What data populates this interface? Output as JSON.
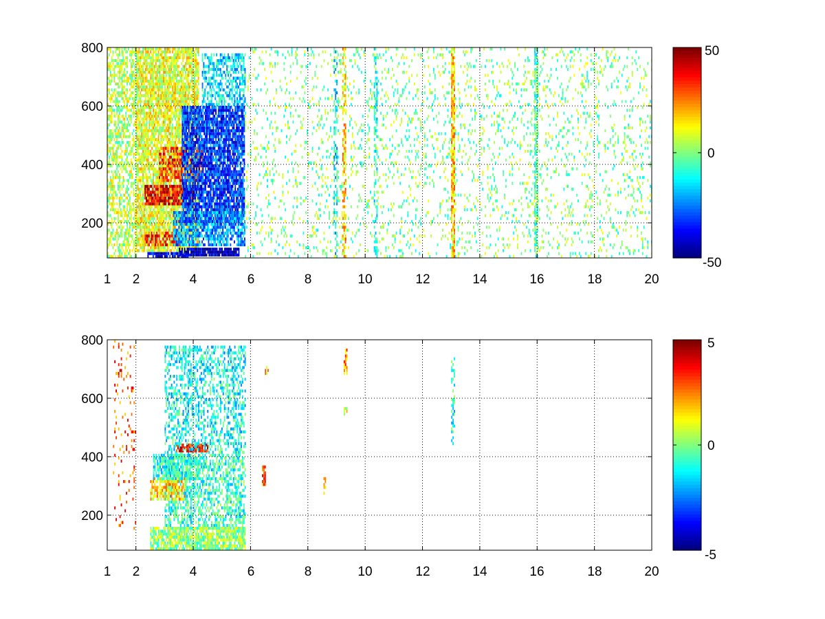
{
  "chart_data": [
    {
      "type": "heatmap",
      "title": "",
      "xlabel": "",
      "ylabel": "",
      "xlim": [
        1,
        20
      ],
      "ylim": [
        80,
        800
      ],
      "x_ticks": [
        1,
        2,
        4,
        6,
        8,
        10,
        12,
        14,
        16,
        18,
        20
      ],
      "x_tick_labels": [
        "1",
        "2",
        "4",
        "6",
        "8",
        "10",
        "12",
        "14",
        "16",
        "18",
        "20"
      ],
      "y_ticks": [
        200,
        400,
        600,
        800
      ],
      "y_tick_labels": [
        "200",
        "400",
        "600",
        "800"
      ],
      "grid": true,
      "colormap": "jet",
      "colorbar": {
        "min": -50,
        "max": 50,
        "ticks": [
          50,
          0,
          -50
        ],
        "tick_labels": [
          "50",
          "0",
          "-50"
        ]
      },
      "features": [
        {
          "x_range": [
            1.0,
            2.0
          ],
          "y_range": [
            80,
            800
          ],
          "value": 5,
          "density": 0.55
        },
        {
          "x_range": [
            2.0,
            4.2
          ],
          "y_range": [
            100,
            800
          ],
          "value": 10,
          "density": 0.8
        },
        {
          "x_range": [
            2.3,
            4.0
          ],
          "y_range": [
            260,
            330
          ],
          "value": 38,
          "density": 0.85
        },
        {
          "x_range": [
            2.8,
            4.3
          ],
          "y_range": [
            340,
            460
          ],
          "value": 32,
          "density": 0.7
        },
        {
          "x_range": [
            2.3,
            3.6
          ],
          "y_range": [
            120,
            170
          ],
          "value": 35,
          "density": 0.6
        },
        {
          "x_range": [
            3.6,
            5.8
          ],
          "y_range": [
            200,
            600
          ],
          "value": -32,
          "density": 0.85
        },
        {
          "x_range": [
            4.3,
            5.8
          ],
          "y_range": [
            600,
            780
          ],
          "value": -15,
          "density": 0.6
        },
        {
          "x_range": [
            3.5,
            5.6
          ],
          "y_range": [
            85,
            115
          ],
          "value": -45,
          "density": 0.9
        },
        {
          "x_range": [
            3.3,
            5.8
          ],
          "y_range": [
            120,
            240
          ],
          "value": -22,
          "density": 0.7
        },
        {
          "x_range": [
            2.4,
            3.8
          ],
          "y_range": [
            80,
            100
          ],
          "value": -40,
          "density": 0.8
        },
        {
          "x_range": [
            5.8,
            20.0
          ],
          "y_range": [
            80,
            800
          ],
          "value": 0,
          "density": 0.12
        },
        {
          "x_range": [
            9.2,
            9.3
          ],
          "y_range": [
            80,
            800
          ],
          "value": 18,
          "density": 0.6
        },
        {
          "x_range": [
            13.0,
            13.1
          ],
          "y_range": [
            80,
            800
          ],
          "value": 18,
          "density": 0.85
        },
        {
          "x_range": [
            15.9,
            16.0
          ],
          "y_range": [
            80,
            800
          ],
          "value": -4,
          "density": 0.8
        },
        {
          "x_range": [
            10.3,
            10.4
          ],
          "y_range": [
            80,
            800
          ],
          "value": -10,
          "density": 0.55
        },
        {
          "x_range": [
            8.9,
            9.0
          ],
          "y_range": [
            80,
            800
          ],
          "value": -14,
          "density": 0.45
        }
      ]
    },
    {
      "type": "heatmap",
      "title": "",
      "xlabel": "",
      "ylabel": "",
      "xlim": [
        1,
        20
      ],
      "ylim": [
        80,
        800
      ],
      "x_ticks": [
        1,
        2,
        4,
        6,
        8,
        10,
        12,
        14,
        16,
        18,
        20
      ],
      "x_tick_labels": [
        "1",
        "2",
        "4",
        "6",
        "8",
        "10",
        "12",
        "14",
        "16",
        "18",
        "20"
      ],
      "y_ticks": [
        200,
        400,
        600,
        800
      ],
      "y_tick_labels": [
        "200",
        "400",
        "600",
        "800"
      ],
      "grid": true,
      "colormap": "jet",
      "colorbar": {
        "min": -5,
        "max": 5,
        "ticks": [
          5,
          0,
          -5
        ],
        "tick_labels": [
          "5",
          "0",
          "-5"
        ]
      },
      "features": [
        {
          "x_range": [
            1.2,
            2.0
          ],
          "y_range": [
            150,
            800
          ],
          "value": 3,
          "density": 0.1
        },
        {
          "x_range": [
            2.5,
            5.8
          ],
          "y_range": [
            80,
            160
          ],
          "value": 0.2,
          "density": 0.85
        },
        {
          "x_range": [
            3.0,
            5.8
          ],
          "y_range": [
            160,
            420
          ],
          "value": -0.8,
          "density": 0.55
        },
        {
          "x_range": [
            2.5,
            3.7
          ],
          "y_range": [
            250,
            330
          ],
          "value": 1.6,
          "density": 0.65
        },
        {
          "x_range": [
            2.6,
            4.2
          ],
          "y_range": [
            320,
            410
          ],
          "value": -1.0,
          "density": 0.7
        },
        {
          "x_range": [
            3.4,
            4.5
          ],
          "y_range": [
            415,
            440
          ],
          "value": 3.8,
          "density": 0.8
        },
        {
          "x_range": [
            3.0,
            5.8
          ],
          "y_range": [
            420,
            780
          ],
          "value": -1.2,
          "density": 0.45
        },
        {
          "x_range": [
            6.5,
            6.6
          ],
          "y_range": [
            680,
            710
          ],
          "value": 2,
          "density": 0.85
        },
        {
          "x_range": [
            6.4,
            6.5
          ],
          "y_range": [
            300,
            370
          ],
          "value": 3,
          "density": 0.7
        },
        {
          "x_range": [
            8.5,
            8.6
          ],
          "y_range": [
            270,
            330
          ],
          "value": 2.5,
          "density": 0.4
        },
        {
          "x_range": [
            9.25,
            9.35
          ],
          "y_range": [
            680,
            770
          ],
          "value": 2.5,
          "density": 0.6
        },
        {
          "x_range": [
            9.25,
            9.35
          ],
          "y_range": [
            540,
            570
          ],
          "value": 1,
          "density": 0.6
        },
        {
          "x_range": [
            13.0,
            13.1
          ],
          "y_range": [
            440,
            740
          ],
          "value": -1,
          "density": 0.45
        }
      ]
    }
  ]
}
